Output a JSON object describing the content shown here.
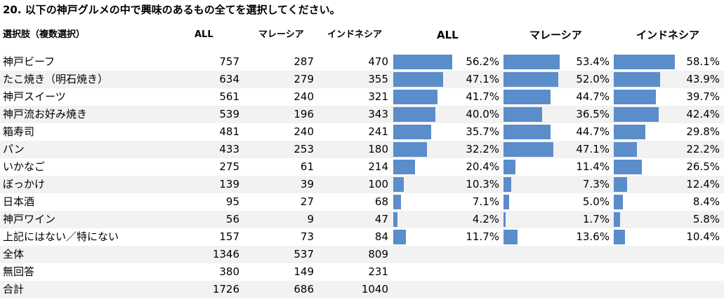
{
  "title": "20. 以下の神戸グルメの中で興味のあるもの全てを選択してください。",
  "headers": {
    "option": "選択肢（複数選択）",
    "all": "ALL",
    "malaysia": "マレーシア",
    "indonesia": "インドネシア",
    "all_pct": "ALL",
    "malaysia_pct": "マレーシア",
    "indonesia_pct": "インドネシア"
  },
  "chart_data": {
    "type": "bar",
    "orientation": "horizontal",
    "categories": [
      "神戸ビーフ",
      "たこ焼き（明石焼き）",
      "神戸スイーツ",
      "神戸流お好み焼き",
      "箱寿司",
      "パン",
      "いかなご",
      "ぼっかけ",
      "日本酒",
      "神戸ワイン",
      "上記にはない／特にない"
    ],
    "series": [
      {
        "name": "ALL",
        "values": [
          56.2,
          47.1,
          41.7,
          40.0,
          35.7,
          32.2,
          20.4,
          10.3,
          7.1,
          4.2,
          11.7
        ],
        "labels": [
          "56.2%",
          "47.1%",
          "41.7%",
          "40.0%",
          "35.7%",
          "32.2%",
          "20.4%",
          "10.3%",
          "7.1%",
          "4.2%",
          "11.7%"
        ]
      },
      {
        "name": "マレーシア",
        "values": [
          53.4,
          52.0,
          44.7,
          36.5,
          44.7,
          47.1,
          11.4,
          7.3,
          5.0,
          1.7,
          13.6
        ],
        "labels": [
          "53.4%",
          "52.0%",
          "44.7%",
          "36.5%",
          "44.7%",
          "47.1%",
          "11.4%",
          "7.3%",
          "5.0%",
          "1.7%",
          "13.6%"
        ]
      },
      {
        "name": "インドネシア",
        "values": [
          58.1,
          43.9,
          39.7,
          42.4,
          29.8,
          22.2,
          26.5,
          12.4,
          8.4,
          5.8,
          10.4
        ],
        "labels": [
          "58.1%",
          "43.9%",
          "39.7%",
          "42.4%",
          "29.8%",
          "22.2%",
          "26.5%",
          "12.4%",
          "8.4%",
          "5.8%",
          "10.4%"
        ]
      }
    ],
    "xlim": [
      0,
      100
    ],
    "bar_color": "#5b8dca"
  },
  "rows": [
    {
      "label": "神戸ビーフ",
      "all": "757",
      "malaysia": "287",
      "indonesia": "470"
    },
    {
      "label": "たこ焼き（明石焼き）",
      "all": "634",
      "malaysia": "279",
      "indonesia": "355"
    },
    {
      "label": "神戸スイーツ",
      "all": "561",
      "malaysia": "240",
      "indonesia": "321"
    },
    {
      "label": "神戸流お好み焼き",
      "all": "539",
      "malaysia": "196",
      "indonesia": "343"
    },
    {
      "label": "箱寿司",
      "all": "481",
      "malaysia": "240",
      "indonesia": "241"
    },
    {
      "label": "パン",
      "all": "433",
      "malaysia": "253",
      "indonesia": "180"
    },
    {
      "label": "いかなご",
      "all": "275",
      "malaysia": "61",
      "indonesia": "214"
    },
    {
      "label": "ぼっかけ",
      "all": "139",
      "malaysia": "39",
      "indonesia": "100"
    },
    {
      "label": "日本酒",
      "all": "95",
      "malaysia": "27",
      "indonesia": "68"
    },
    {
      "label": "神戸ワイン",
      "all": "56",
      "malaysia": "9",
      "indonesia": "47"
    },
    {
      "label": "上記にはない／特にない",
      "all": "157",
      "malaysia": "73",
      "indonesia": "84"
    },
    {
      "label": "全体",
      "all": "1346",
      "malaysia": "537",
      "indonesia": "809"
    },
    {
      "label": "無回答",
      "all": "380",
      "malaysia": "149",
      "indonesia": "231"
    },
    {
      "label": "合計",
      "all": "1726",
      "malaysia": "686",
      "indonesia": "1040"
    }
  ]
}
